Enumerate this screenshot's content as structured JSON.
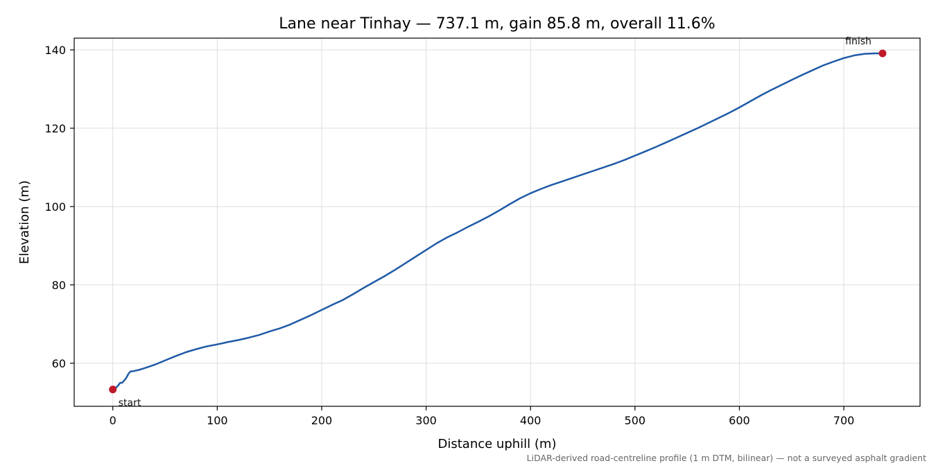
{
  "chart_data": {
    "type": "line",
    "title": "Lane near Tinhay — 737.1 m, gain 85.8 m, overall 11.6%",
    "xlabel": "Distance uphill (m)",
    "ylabel": "Elevation (m)",
    "caption": "LiDAR-derived road-centreline profile (1 m DTM, bilinear) — not a surveyed asphalt gradient",
    "xlim": [
      -37,
      773
    ],
    "ylim": [
      49,
      143
    ],
    "xticks": [
      0,
      100,
      200,
      300,
      400,
      500,
      600,
      700
    ],
    "yticks": [
      60,
      80,
      100,
      120,
      140
    ],
    "grid": true,
    "legend": "none",
    "line_color": "#1f5aa6",
    "marker_color": "#c0192c",
    "series": [
      {
        "x": [
          0,
          3,
          5,
          7,
          9,
          11,
          13,
          15,
          17,
          20,
          25,
          30,
          40,
          50,
          60,
          70,
          80,
          90,
          100,
          105,
          110,
          120,
          130,
          140,
          150,
          160,
          170,
          180,
          190,
          200,
          210,
          220,
          230,
          240,
          250,
          260,
          270,
          280,
          290,
          300,
          310,
          320,
          330,
          340,
          350,
          360,
          370,
          380,
          390,
          400,
          410,
          420,
          430,
          440,
          450,
          460,
          470,
          480,
          490,
          500,
          510,
          520,
          530,
          540,
          550,
          560,
          570,
          580,
          590,
          600,
          610,
          620,
          630,
          640,
          650,
          660,
          670,
          680,
          690,
          700,
          710,
          720,
          730,
          737.1
        ],
        "y": [
          53.3,
          53.7,
          54.3,
          55.0,
          55.0,
          55.6,
          56.3,
          57.3,
          57.9,
          58.0,
          58.3,
          58.7,
          59.6,
          60.7,
          61.8,
          62.8,
          63.6,
          64.3,
          64.8,
          65.1,
          65.4,
          65.9,
          66.5,
          67.2,
          68.1,
          68.9,
          69.9,
          71.1,
          72.3,
          73.6,
          74.9,
          76.1,
          77.6,
          79.2,
          80.7,
          82.2,
          83.8,
          85.5,
          87.2,
          88.9,
          90.6,
          92.1,
          93.4,
          94.8,
          96.1,
          97.5,
          99.0,
          100.6,
          102.1,
          103.4,
          104.5,
          105.5,
          106.4,
          107.3,
          108.2,
          109.1,
          110.0,
          110.9,
          111.9,
          113.0,
          114.1,
          115.2,
          116.4,
          117.6,
          118.8,
          120.0,
          121.3,
          122.6,
          123.9,
          125.3,
          126.8,
          128.3,
          129.7,
          131.0,
          132.3,
          133.6,
          134.8,
          136.0,
          137.0,
          137.9,
          138.6,
          139.0,
          139.1,
          139.1
        ]
      }
    ],
    "annotations": [
      {
        "text": "start",
        "x": 0,
        "y": 53.3
      },
      {
        "text": "finish",
        "x": 737.1,
        "y": 139.1
      }
    ]
  }
}
